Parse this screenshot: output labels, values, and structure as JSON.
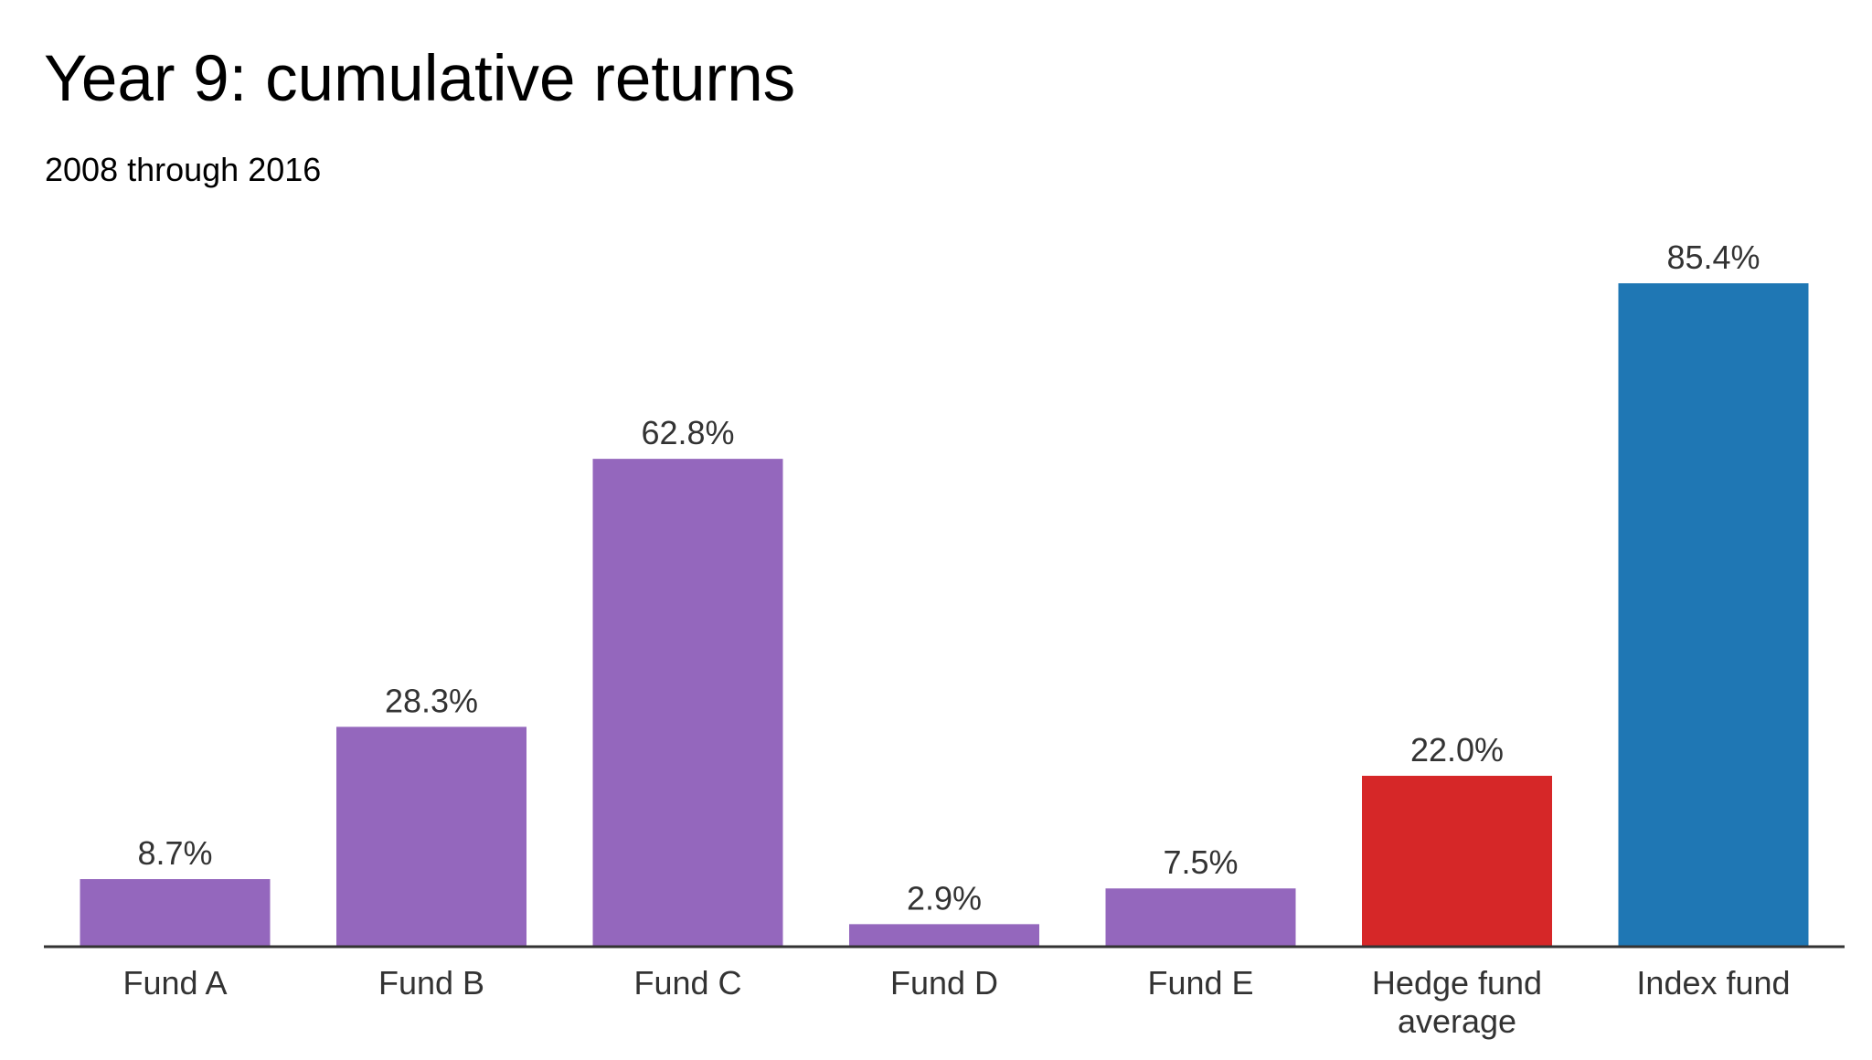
{
  "chart_data": {
    "type": "bar",
    "title": "Year 9: cumulative returns",
    "subtitle": "2008 through 2016",
    "xlabel": "",
    "ylabel": "",
    "ylim": [
      0,
      85.4
    ],
    "grid": false,
    "categories": [
      [
        "Fund A"
      ],
      [
        "Fund B"
      ],
      [
        "Fund C"
      ],
      [
        "Fund D"
      ],
      [
        "Fund E"
      ],
      [
        "Hedge fund",
        "average"
      ],
      [
        "Index fund"
      ]
    ],
    "values": [
      8.7,
      28.3,
      62.8,
      2.9,
      7.5,
      22.0,
      85.4
    ],
    "value_labels": [
      "8.7%",
      "28.3%",
      "62.8%",
      "2.9%",
      "7.5%",
      "22.0%",
      "85.4%"
    ],
    "colors": [
      "#9467bd",
      "#9467bd",
      "#9467bd",
      "#9467bd",
      "#9467bd",
      "#d62728",
      "#1f77b4"
    ],
    "axis_color": "#333333"
  }
}
